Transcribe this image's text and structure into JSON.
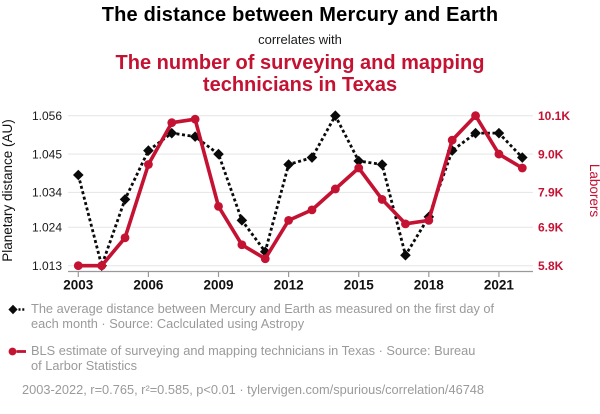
{
  "header": {
    "title_line1": "The distance between Mercury and Earth",
    "connector": "correlates with",
    "title2_lines": [
      "The number of surveying and mapping",
      "technicians in Texas"
    ]
  },
  "colors": {
    "accent_red": "#C41233",
    "series_black": "#0a0a0a",
    "gridline": "#e8e8e8",
    "axis": "#999999",
    "legend_gray": "#9a9a9a"
  },
  "chart_data": {
    "type": "line",
    "x": [
      2003,
      2004,
      2005,
      2006,
      2007,
      2008,
      2009,
      2010,
      2011,
      2012,
      2013,
      2014,
      2015,
      2016,
      2017,
      2018,
      2019,
      2020,
      2021,
      2022
    ],
    "x_ticks": [
      2003,
      2006,
      2009,
      2012,
      2015,
      2018,
      2021
    ],
    "left_axis": {
      "label": "Planetary distance (AU)",
      "ticks": [
        1.056,
        1.045,
        1.034,
        1.024,
        1.013
      ],
      "tick_labels": [
        "1.056",
        "1.045",
        "1.034",
        "1.024",
        "1.013"
      ],
      "range": [
        1.013,
        1.056
      ]
    },
    "right_axis": {
      "label": "Laborers",
      "ticks": [
        10.1,
        9.0,
        7.9,
        6.9,
        5.8
      ],
      "tick_labels": [
        "10.1K",
        "9.0K",
        "7.9K",
        "6.9K",
        "5.8K"
      ],
      "range": [
        5.8,
        10.1
      ]
    },
    "series": [
      {
        "name": "mercury-earth-distance",
        "axis": "left",
        "style": "dashed",
        "marker": "diamond",
        "color": "#0a0a0a",
        "values": [
          1.039,
          1.013,
          1.032,
          1.046,
          1.051,
          1.05,
          1.045,
          1.026,
          1.017,
          1.042,
          1.044,
          1.056,
          1.043,
          1.042,
          1.016,
          1.027,
          1.046,
          1.051,
          1.051,
          1.044
        ]
      },
      {
        "name": "surveying-mapping-technicians-texas",
        "axis": "right",
        "style": "solid",
        "marker": "circle",
        "color": "#C41233",
        "values": [
          5.8,
          5.8,
          6.6,
          8.7,
          9.9,
          10.0,
          7.5,
          6.4,
          6.0,
          7.1,
          7.4,
          8.0,
          8.6,
          7.7,
          7.0,
          7.1,
          9.4,
          10.1,
          9.0,
          8.6
        ]
      }
    ]
  },
  "legend": [
    {
      "lines": [
        "The average distance between Mercury and Earth as measured on the first day of",
        "each month · Source: Caclculated using Astropy"
      ]
    },
    {
      "lines": [
        "BLS estimate of surveying and mapping technicians in Texas · Source: Bureau",
        "of Larbor Statistics"
      ]
    }
  ],
  "footer": {
    "text": "2003-2022, r=0.765, r²=0.585, p<0.01 · tylervigen.com/spurious/correlation/46748"
  }
}
